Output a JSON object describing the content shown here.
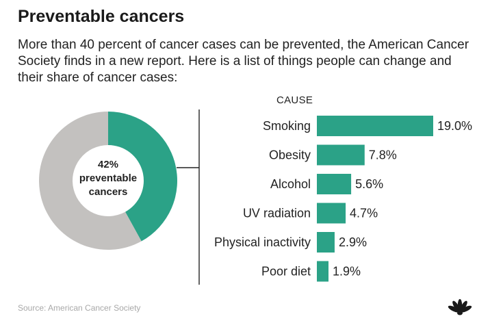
{
  "title": "Preventable cancers",
  "subtitle": "More than 40 percent of cancer cases can be prevented, the American Cancer Society finds in a new report. Here is a list of things people can change and their share of cancer cases:",
  "cause_header": "CAUSE",
  "source": "Source: American Cancer Society",
  "colors": {
    "accent": "#2ba287",
    "rest": "#c3c1bf",
    "text": "#222222",
    "source": "#a8a8a8"
  },
  "logo_icon": "nbc-peacock-icon",
  "chart_data": [
    {
      "type": "pie",
      "donut": true,
      "center_label": [
        "42%",
        "preventable",
        "cancers"
      ],
      "slices": [
        {
          "label": "preventable",
          "value": 42,
          "color": "#2ba287"
        },
        {
          "label": "other",
          "value": 58,
          "color": "#c3c1bf"
        }
      ]
    },
    {
      "type": "bar",
      "orientation": "horizontal",
      "categories": [
        "Smoking",
        "Obesity",
        "Alcohol",
        "UV radiation",
        "Physical inactivity",
        "Poor diet"
      ],
      "values": [
        19.0,
        7.8,
        5.6,
        4.7,
        2.9,
        1.9
      ],
      "value_labels": [
        "19.0%",
        "7.8%",
        "5.6%",
        "4.7%",
        "2.9%",
        "1.9%"
      ],
      "color": "#2ba287",
      "xlim": [
        0,
        19.0
      ]
    }
  ]
}
